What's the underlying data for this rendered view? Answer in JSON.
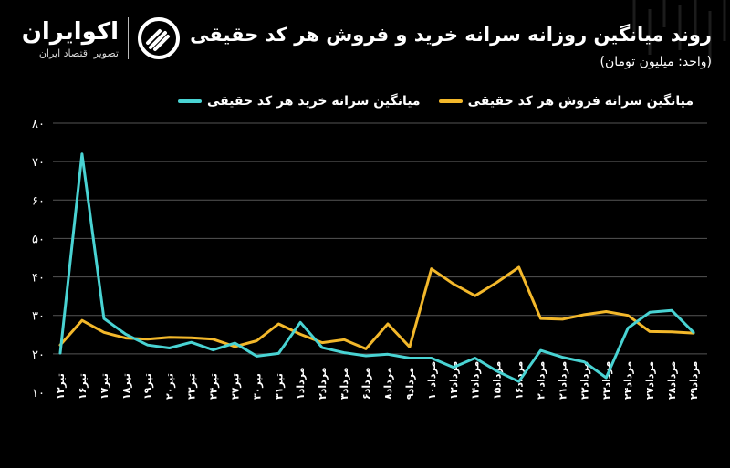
{
  "brand": {
    "name": "اکوایران",
    "tagline": "تصویر اقتصاد ایران"
  },
  "header": {
    "title": "روند میانگین روزانه سرانه خرید و فروش هر کد حقیقی",
    "subtitle": "(واحد: میلیون تومان)"
  },
  "colors": {
    "background": "#000000",
    "buy": "#49d3d3",
    "sell": "#f3b82b",
    "grid": "#555555",
    "text": "#ffffff"
  },
  "chart_data": {
    "type": "line",
    "title": "روند میانگین روزانه سرانه خرید و فروش هر کد حقیقی",
    "ylabel": "(واحد: میلیون تومان)",
    "ylim": [
      10,
      80
    ],
    "yticks": [
      "۱۰",
      "۲۰",
      "۳۰",
      "۴۰",
      "۵۰",
      "۶۰",
      "۷۰",
      "۸۰"
    ],
    "grid": true,
    "legend": "top",
    "categories": [
      "تیر۱۳",
      "تیر۱۶",
      "تیر۱۷",
      "تیر۱۸",
      "تیر۱۹",
      "تیر۲۰",
      "تیر۲۳",
      "تیر۲۴",
      "تیر۲۷",
      "تیر۳۰",
      "تیر۳۱",
      "مرداد۱",
      "مرداد۲",
      "مرداد۳",
      "مرداد۶",
      "مرداد۸",
      "مرداد۹",
      "مرداد۱۰",
      "مرداد۱۳",
      "مرداد۱۴",
      "مرداد۱۵",
      "مرداد۱۶",
      "مرداد۲۰",
      "مرداد۲۱",
      "مرداد۲۲",
      "مرداد۲۳",
      "مرداد۲۴",
      "مرداد۲۷",
      "مرداد۲۸",
      "مرداد۲۹"
    ],
    "series": [
      {
        "name": "میانگین سرانه خرید هر کد حقیقی",
        "color": "#49d3d3",
        "values": [
          20.2,
          72.0,
          29.2,
          25.1,
          22.3,
          21.5,
          23.0,
          21.0,
          22.8,
          19.4,
          20.1,
          28.2,
          21.6,
          20.3,
          19.5,
          19.9,
          18.9,
          18.9,
          16.5,
          18.9,
          15.5,
          12.8,
          20.9,
          19.1,
          17.9,
          13.8,
          26.7,
          30.8,
          31.3,
          25.6
        ]
      },
      {
        "name": "میانگین سرانه فروش هر کد حقیقی",
        "color": "#f3b82b",
        "values": [
          22.3,
          28.7,
          25.6,
          24.1,
          23.8,
          24.3,
          24.2,
          23.8,
          21.9,
          23.4,
          27.8,
          25.1,
          22.9,
          23.7,
          21.3,
          27.8,
          21.8,
          42.1,
          38.2,
          35.1,
          38.6,
          42.5,
          29.2,
          29.0,
          30.2,
          31.0,
          30.0,
          25.8,
          25.7,
          25.4
        ]
      }
    ]
  }
}
